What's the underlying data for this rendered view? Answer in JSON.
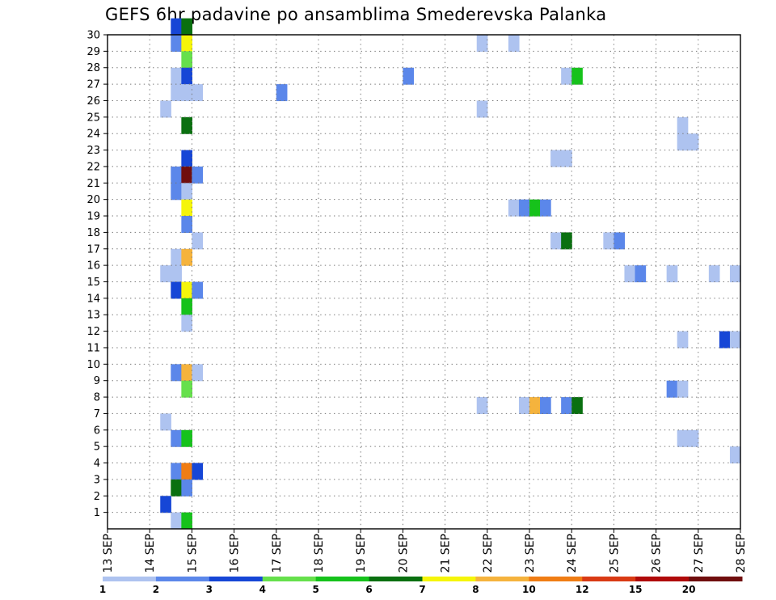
{
  "chart_data": {
    "type": "heatmap",
    "title": "GEFS 6hr padavine po ansamblima Smederevska Palanka",
    "xlabel": "",
    "ylabel": "",
    "x_ticks": [
      "13 SEP",
      "14 SEP",
      "15 SEP",
      "16 SEP",
      "17 SEP",
      "18 SEP",
      "19 SEP",
      "20 SEP",
      "21 SEP",
      "22 SEP",
      "23 SEP",
      "24 SEP",
      "25 SEP",
      "26 SEP",
      "27 SEP",
      "28 SEP"
    ],
    "x_range_days": [
      13,
      28
    ],
    "y_ticks": [
      "1",
      "2",
      "3",
      "4",
      "5",
      "6",
      "7",
      "8",
      "9",
      "10",
      "11",
      "12",
      "13",
      "14",
      "15",
      "16",
      "17",
      "18",
      "19",
      "20",
      "21",
      "22",
      "23",
      "24",
      "25",
      "26",
      "27",
      "28",
      "29",
      "30"
    ],
    "y_range": [
      0,
      30
    ],
    "time_step_hours": 6,
    "grid": true,
    "colorbar": {
      "placement": "bottom",
      "labels": [
        "1",
        "2",
        "3",
        "4",
        "5",
        "6",
        "7",
        "8",
        "10",
        "12",
        "15",
        "20"
      ],
      "colors": [
        "#aec3f0",
        "#5b87ea",
        "#1646d6",
        "#66e04c",
        "#16c21b",
        "#0a7010",
        "#f5f50a",
        "#f5b33d",
        "#f07d14",
        "#d93a14",
        "#b00a0a",
        "#700e0e"
      ]
    },
    "cells": [
      {
        "m": 30,
        "d": 14.5,
        "v": 3
      },
      {
        "m": 30,
        "d": 14.75,
        "v": 6
      },
      {
        "m": 29,
        "d": 14.5,
        "v": 2
      },
      {
        "m": 29,
        "d": 14.75,
        "v": 7
      },
      {
        "m": 28,
        "d": 14.75,
        "v": 4
      },
      {
        "m": 27,
        "d": 14.5,
        "v": 1
      },
      {
        "m": 27,
        "d": 14.75,
        "v": 3
      },
      {
        "m": 26,
        "d": 14.5,
        "v": 1
      },
      {
        "m": 26,
        "d": 14.75,
        "v": 1
      },
      {
        "m": 26,
        "d": 15.0,
        "v": 1
      },
      {
        "m": 25,
        "d": 14.25,
        "v": 1
      },
      {
        "m": 24,
        "d": 14.75,
        "v": 6
      },
      {
        "m": 22,
        "d": 14.75,
        "v": 3
      },
      {
        "m": 21,
        "d": 14.5,
        "v": 2
      },
      {
        "m": 21,
        "d": 14.75,
        "v": 20
      },
      {
        "m": 21,
        "d": 15.0,
        "v": 2
      },
      {
        "m": 20,
        "d": 14.5,
        "v": 2
      },
      {
        "m": 20,
        "d": 14.75,
        "v": 1
      },
      {
        "m": 19,
        "d": 14.75,
        "v": 7
      },
      {
        "m": 18,
        "d": 14.75,
        "v": 2
      },
      {
        "m": 17,
        "d": 15.0,
        "v": 1
      },
      {
        "m": 16,
        "d": 14.5,
        "v": 1
      },
      {
        "m": 16,
        "d": 14.75,
        "v": 8
      },
      {
        "m": 15,
        "d": 14.25,
        "v": 1
      },
      {
        "m": 15,
        "d": 14.5,
        "v": 1
      },
      {
        "m": 14,
        "d": 14.5,
        "v": 3
      },
      {
        "m": 14,
        "d": 14.75,
        "v": 7
      },
      {
        "m": 14,
        "d": 15.0,
        "v": 2
      },
      {
        "m": 13,
        "d": 14.75,
        "v": 5
      },
      {
        "m": 12,
        "d": 14.75,
        "v": 1
      },
      {
        "m": 9,
        "d": 14.5,
        "v": 2
      },
      {
        "m": 9,
        "d": 14.75,
        "v": 8
      },
      {
        "m": 9,
        "d": 15.0,
        "v": 1
      },
      {
        "m": 8,
        "d": 14.75,
        "v": 4
      },
      {
        "m": 6,
        "d": 14.25,
        "v": 1
      },
      {
        "m": 5,
        "d": 14.5,
        "v": 2
      },
      {
        "m": 5,
        "d": 14.75,
        "v": 5
      },
      {
        "m": 3,
        "d": 14.5,
        "v": 2
      },
      {
        "m": 3,
        "d": 14.75,
        "v": 10
      },
      {
        "m": 3,
        "d": 15.0,
        "v": 3
      },
      {
        "m": 2,
        "d": 14.5,
        "v": 6
      },
      {
        "m": 2,
        "d": 14.75,
        "v": 2
      },
      {
        "m": 1,
        "d": 14.25,
        "v": 3
      },
      {
        "m": 0,
        "d": 14.5,
        "v": 1
      },
      {
        "m": 0,
        "d": 14.75,
        "v": 5
      },
      {
        "m": 26,
        "d": 17.0,
        "v": 2
      },
      {
        "m": 27,
        "d": 20.0,
        "v": 2
      },
      {
        "m": 29,
        "d": 21.75,
        "v": 1
      },
      {
        "m": 29,
        "d": 22.5,
        "v": 1
      },
      {
        "m": 25,
        "d": 21.75,
        "v": 1
      },
      {
        "m": 27,
        "d": 23.75,
        "v": 1
      },
      {
        "m": 27,
        "d": 24.0,
        "v": 5
      },
      {
        "m": 22,
        "d": 23.5,
        "v": 1
      },
      {
        "m": 22,
        "d": 23.75,
        "v": 1
      },
      {
        "m": 19,
        "d": 22.5,
        "v": 1
      },
      {
        "m": 19,
        "d": 22.75,
        "v": 2
      },
      {
        "m": 19,
        "d": 23.0,
        "v": 5
      },
      {
        "m": 19,
        "d": 23.25,
        "v": 2
      },
      {
        "m": 17,
        "d": 23.5,
        "v": 1
      },
      {
        "m": 17,
        "d": 23.75,
        "v": 6
      },
      {
        "m": 17,
        "d": 24.75,
        "v": 1
      },
      {
        "m": 17,
        "d": 25.0,
        "v": 2
      },
      {
        "m": 15,
        "d": 25.25,
        "v": 1
      },
      {
        "m": 15,
        "d": 25.5,
        "v": 2
      },
      {
        "m": 15,
        "d": 26.25,
        "v": 1
      },
      {
        "m": 15,
        "d": 27.25,
        "v": 1
      },
      {
        "m": 15,
        "d": 27.75,
        "v": 1
      },
      {
        "m": 24,
        "d": 26.5,
        "v": 1
      },
      {
        "m": 23,
        "d": 26.5,
        "v": 1
      },
      {
        "m": 23,
        "d": 26.75,
        "v": 1
      },
      {
        "m": 11,
        "d": 26.5,
        "v": 1
      },
      {
        "m": 11,
        "d": 27.5,
        "v": 3
      },
      {
        "m": 11,
        "d": 27.75,
        "v": 1
      },
      {
        "m": 8,
        "d": 26.25,
        "v": 2
      },
      {
        "m": 8,
        "d": 26.5,
        "v": 1
      },
      {
        "m": 7,
        "d": 21.75,
        "v": 1
      },
      {
        "m": 7,
        "d": 22.75,
        "v": 1
      },
      {
        "m": 7,
        "d": 23.0,
        "v": 8
      },
      {
        "m": 7,
        "d": 23.25,
        "v": 2
      },
      {
        "m": 7,
        "d": 23.75,
        "v": 2
      },
      {
        "m": 7,
        "d": 24.0,
        "v": 6
      },
      {
        "m": 5,
        "d": 26.5,
        "v": 1
      },
      {
        "m": 5,
        "d": 26.75,
        "v": 1
      },
      {
        "m": 4,
        "d": 27.75,
        "v": 1
      }
    ]
  }
}
